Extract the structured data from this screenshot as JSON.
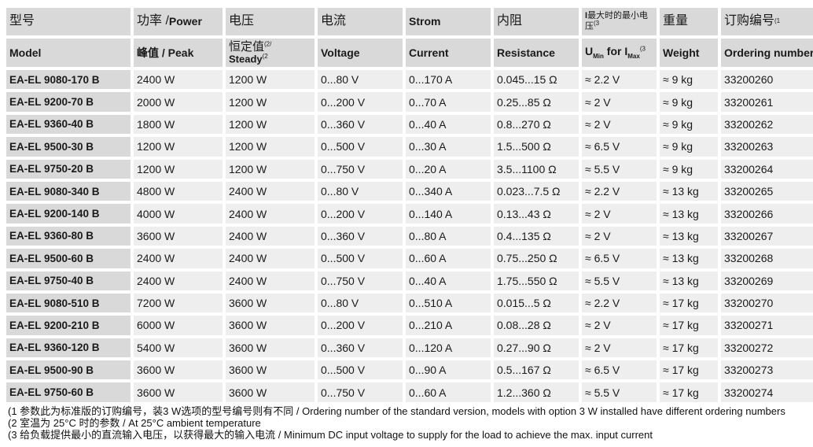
{
  "header_row1": [
    {
      "cn": "型号",
      "en": ""
    },
    {
      "cn": "功率 / ",
      "en": "Power"
    },
    {
      "cn": "电压",
      "en": ""
    },
    {
      "cn": "电流",
      "en": ""
    },
    {
      "cn": "",
      "en": "Strom"
    },
    {
      "cn": "内阻",
      "en": ""
    },
    {
      "cn": "最大时的最小电压",
      "en": ""
    },
    {
      "cn": "重量",
      "en": ""
    },
    {
      "cn": "订购编号",
      "en": ""
    }
  ],
  "header_row1_notes": {
    "col6": "(3",
    "col8": "(1"
  },
  "header_row2": {
    "model": "Model",
    "peak": "峰值 / Peak",
    "steady_cn": "恒定值",
    "steady_note": "(2/",
    "steady_en": "Steady",
    "steady_en_note": "(2",
    "voltage": "Voltage",
    "current": "Current",
    "resistance": "Resistance",
    "umin_u": "U",
    "umin_sub": "Min",
    "umin_for": " for I",
    "umin_sub2": "Max",
    "umin_note": "(3",
    "weight": "Weight",
    "ordering": "Ordering number",
    "ordering_note": "(1"
  },
  "rows": [
    {
      "model": "EA-EL 9080-170 B",
      "peak": "2400 W",
      "steady": "1200 W",
      "voltage": "0...80 V",
      "current": "0...170 A",
      "resistance": "0.045...15 Ω",
      "umin": "≈ 2.2 V",
      "weight": "≈ 9 kg",
      "order": "33200260"
    },
    {
      "model": "EA-EL 9200-70 B",
      "peak": "2000 W",
      "steady": "1200 W",
      "voltage": "0...200 V",
      "current": "0...70 A",
      "resistance": "0.25...85 Ω",
      "umin": "≈ 2 V",
      "weight": "≈ 9 kg",
      "order": "33200261"
    },
    {
      "model": "EA-EL 9360-40 B",
      "peak": "1800 W",
      "steady": "1200 W",
      "voltage": "0...360 V",
      "current": "0...40 A",
      "resistance": "0.8...270 Ω",
      "umin": "≈ 2 V",
      "weight": "≈ 9 kg",
      "order": "33200262"
    },
    {
      "model": "EA-EL 9500-30 B",
      "peak": "1200 W",
      "steady": "1200 W",
      "voltage": "0...500 V",
      "current": "0...30 A",
      "resistance": "1.5...500 Ω",
      "umin": "≈ 6.5 V",
      "weight": "≈ 9 kg",
      "order": "33200263"
    },
    {
      "model": "EA-EL 9750-20 B",
      "peak": "1200 W",
      "steady": "1200 W",
      "voltage": "0...750 V",
      "current": "0...20 A",
      "resistance": "3.5...1100 Ω",
      "umin": "≈ 5.5 V",
      "weight": "≈ 9 kg",
      "order": "33200264"
    },
    {
      "model": "EA-EL 9080-340 B",
      "peak": "4800 W",
      "steady": "2400 W",
      "voltage": "0...80 V",
      "current": "0...340 A",
      "resistance": "0.023...7.5 Ω",
      "umin": "≈ 2.2 V",
      "weight": "≈ 13 kg",
      "order": "33200265"
    },
    {
      "model": "EA-EL 9200-140 B",
      "peak": "4000 W",
      "steady": "2400 W",
      "voltage": "0...200 V",
      "current": "0...140 A",
      "resistance": "0.13...43 Ω",
      "umin": "≈ 2 V",
      "weight": "≈ 13 kg",
      "order": "33200266"
    },
    {
      "model": "EA-EL 9360-80 B",
      "peak": "3600 W",
      "steady": "2400 W",
      "voltage": "0...360 V",
      "current": "0...80 A",
      "resistance": "0.4...135 Ω",
      "umin": "≈ 2 V",
      "weight": "≈ 13 kg",
      "order": "33200267"
    },
    {
      "model": "EA-EL 9500-60 B",
      "peak": "2400 W",
      "steady": "2400 W",
      "voltage": "0...500 V",
      "current": "0...60 A",
      "resistance": "0.75...250 Ω",
      "umin": "≈ 6.5 V",
      "weight": "≈ 13 kg",
      "order": "33200268"
    },
    {
      "model": "EA-EL 9750-40 B",
      "peak": "2400 W",
      "steady": "2400 W",
      "voltage": "0...750 V",
      "current": "0...40 A",
      "resistance": "1.75...550 Ω",
      "umin": "≈ 5.5 V",
      "weight": "≈ 13 kg",
      "order": "33200269"
    },
    {
      "model": "EA-EL 9080-510 B",
      "peak": "7200 W",
      "steady": "3600 W",
      "voltage": "0...80 V",
      "current": "0...510 A",
      "resistance": "0.015...5 Ω",
      "umin": "≈ 2.2 V",
      "weight": "≈ 17 kg",
      "order": "33200270"
    },
    {
      "model": "EA-EL 9200-210 B",
      "peak": "6000 W",
      "steady": "3600 W",
      "voltage": "0...200 V",
      "current": "0...210 A",
      "resistance": "0.08...28 Ω",
      "umin": "≈ 2 V",
      "weight": "≈ 17 kg",
      "order": "33200271"
    },
    {
      "model": "EA-EL 9360-120 B",
      "peak": "5400 W",
      "steady": "3600 W",
      "voltage": "0...360 V",
      "current": "0...120 A",
      "resistance": "0.27...90 Ω",
      "umin": "≈ 2 V",
      "weight": "≈ 17 kg",
      "order": "33200272"
    },
    {
      "model": "EA-EL 9500-90 B",
      "peak": "3600 W",
      "steady": "3600 W",
      "voltage": "0...500 V",
      "current": "0...90 A",
      "resistance": "0.5...167 Ω",
      "umin": "≈ 6.5 V",
      "weight": "≈ 17 kg",
      "order": "33200273"
    },
    {
      "model": "EA-EL 9750-60 B",
      "peak": "3600 W",
      "steady": "3600 W",
      "voltage": "0...750 V",
      "current": "0...60 A",
      "resistance": "1.2...360 Ω",
      "umin": "≈ 5.5 V",
      "weight": "≈ 17 kg",
      "order": "33200274"
    }
  ],
  "notes": [
    "(1 参数此为标准版的订购编号，装3 W选项的型号编号则有不同 / Ordering number of the standard version, models with option 3 W installed have different ordering numbers",
    "(2 室温为 25°C 时的参数 / At 25°C ambient temperature",
    "(3 给负载提供最小的直流输入电压，以获得最大的输入电流 / Minimum DC input voltage to supply for the load to achieve the max. input current"
  ]
}
